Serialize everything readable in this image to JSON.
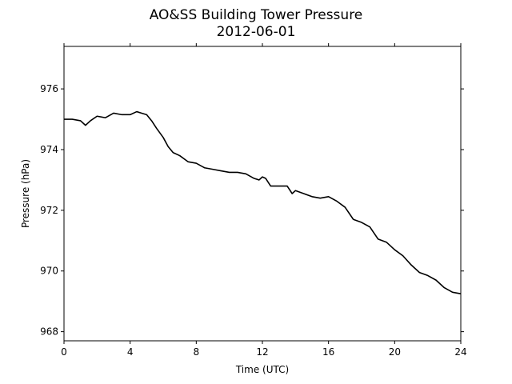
{
  "chart_data": {
    "type": "line",
    "title": "AO&SS Building Tower Pressure",
    "subtitle": "2012-06-01",
    "xlabel": "Time (UTC)",
    "ylabel": "Pressure (hPa)",
    "xlim": [
      0,
      24
    ],
    "ylim": [
      967.7,
      977.4
    ],
    "x_ticks": [
      0,
      4,
      8,
      12,
      16,
      20,
      24
    ],
    "y_ticks": [
      968,
      970,
      972,
      974,
      976
    ],
    "grid": false,
    "line_color": "#000000",
    "series": [
      {
        "x": [
          0,
          0.5,
          1.0,
          1.3,
          1.6,
          2.0,
          2.5,
          3.0,
          3.5,
          4.0,
          4.4,
          4.7,
          5.0,
          5.3,
          5.6,
          6.0,
          6.3,
          6.6,
          7.0,
          7.5,
          8.0,
          8.5,
          9.0,
          9.5,
          10.0,
          10.5,
          11.0,
          11.5,
          11.8,
          12.0,
          12.2,
          12.5,
          13.0,
          13.5,
          13.8,
          14.0,
          14.5,
          15.0,
          15.5,
          16.0,
          16.5,
          17.0,
          17.5,
          18.0,
          18.5,
          19.0,
          19.5,
          20.0,
          20.5,
          21.0,
          21.5,
          22.0,
          22.5,
          23.0,
          23.5,
          24.0
        ],
        "y": [
          975.0,
          975.0,
          974.95,
          974.8,
          974.95,
          975.1,
          975.05,
          975.2,
          975.15,
          975.15,
          975.25,
          975.2,
          975.15,
          974.95,
          974.7,
          974.4,
          974.1,
          973.9,
          973.8,
          973.6,
          973.55,
          973.4,
          973.35,
          973.3,
          973.25,
          973.25,
          973.2,
          973.05,
          973.0,
          973.1,
          973.05,
          972.8,
          972.8,
          972.8,
          972.55,
          972.65,
          972.55,
          972.45,
          972.4,
          972.45,
          972.3,
          972.1,
          971.7,
          971.6,
          971.45,
          971.05,
          970.95,
          970.7,
          970.5,
          970.2,
          969.95,
          969.85,
          969.7,
          969.45,
          969.3,
          969.25
        ]
      }
    ]
  }
}
